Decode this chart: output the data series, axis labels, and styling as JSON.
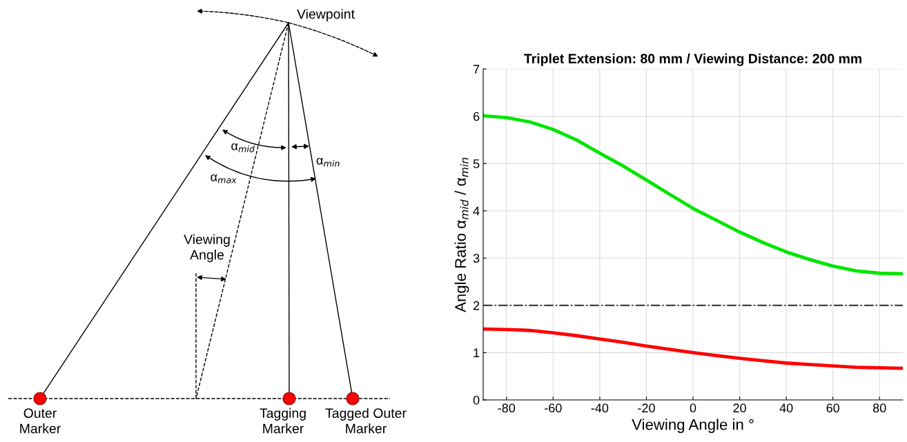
{
  "chart_data": [
    {
      "type": "other",
      "annotations": [
        "Viewpoint",
        "α$_{mid}$",
        "α$_{min}$",
        "α$_{max}$",
        "Viewing\nAngle",
        "Outer\nMarker",
        "Tagging\nMarker",
        "Tagged Outer\nMarker"
      ]
    },
    {
      "type": "line",
      "title": "Triplet Extension: 80 mm / Viewing Distance: 200 mm",
      "xlabel": "Viewing Angle in °",
      "ylabel": "Angle Ratio α$_{mid}$ / α$_{min}$",
      "x": [
        -90,
        -80,
        -70,
        -60,
        -50,
        -40,
        -30,
        -20,
        -10,
        0,
        10,
        20,
        30,
        40,
        50,
        60,
        70,
        80,
        90
      ],
      "series": [
        {
          "color": "#00e600",
          "values": [
            6.01,
            5.97,
            5.88,
            5.72,
            5.5,
            5.22,
            4.95,
            4.65,
            4.35,
            4.05,
            3.8,
            3.55,
            3.33,
            3.13,
            2.97,
            2.83,
            2.73,
            2.68,
            2.67
          ]
        },
        {
          "color": "#ff0000",
          "values": [
            1.5,
            1.49,
            1.47,
            1.42,
            1.36,
            1.29,
            1.22,
            1.14,
            1.07,
            1.0,
            0.94,
            0.88,
            0.83,
            0.78,
            0.75,
            0.72,
            0.69,
            0.68,
            0.67
          ]
        }
      ],
      "ref_lines": [
        {
          "axis": "y",
          "value": 2,
          "color": "#404040",
          "line_style": "dashdot"
        }
      ],
      "xlim": [
        -90,
        90
      ],
      "ylim": [
        0,
        7
      ],
      "xticks": [
        -80,
        -60,
        -40,
        -20,
        0,
        20,
        40,
        60,
        80
      ],
      "yticks": [
        0,
        1,
        2,
        3,
        4,
        5,
        6,
        7
      ],
      "grid": true,
      "marker": "none",
      "line_style": "solid"
    }
  ]
}
